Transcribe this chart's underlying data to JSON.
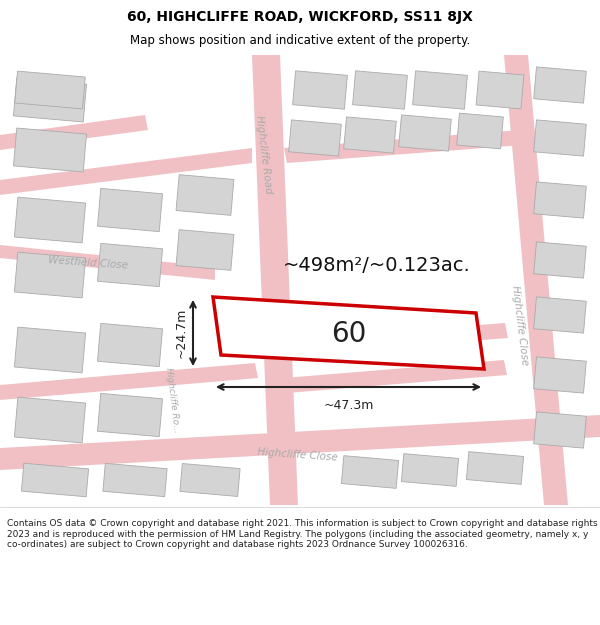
{
  "title": "60, HIGHCLIFFE ROAD, WICKFORD, SS11 8JX",
  "subtitle": "Map shows position and indicative extent of the property.",
  "footer": "Contains OS data © Crown copyright and database right 2021. This information is subject to Crown copyright and database rights 2023 and is reproduced with the permission of HM Land Registry. The polygons (including the associated geometry, namely x, y co-ordinates) are subject to Crown copyright and database rights 2023 Ordnance Survey 100026316.",
  "area_label": "~498m²/~0.123ac.",
  "number_label": "60",
  "width_label": "~47.3m",
  "height_label": "~24.7m",
  "map_bg": "#f2f2f2",
  "road_color": "#f0c0c4",
  "building_fill": "#d4d4d4",
  "building_stroke": "#aaaaaa",
  "plot_fill": "#ffffff",
  "plot_stroke": "#cc0000",
  "road_label_color": "#999999",
  "dim_color": "#222222",
  "title_color": "#000000",
  "footer_color": "#222222",
  "title_fontsize": 10,
  "subtitle_fontsize": 8.5,
  "footer_fontsize": 6.5
}
